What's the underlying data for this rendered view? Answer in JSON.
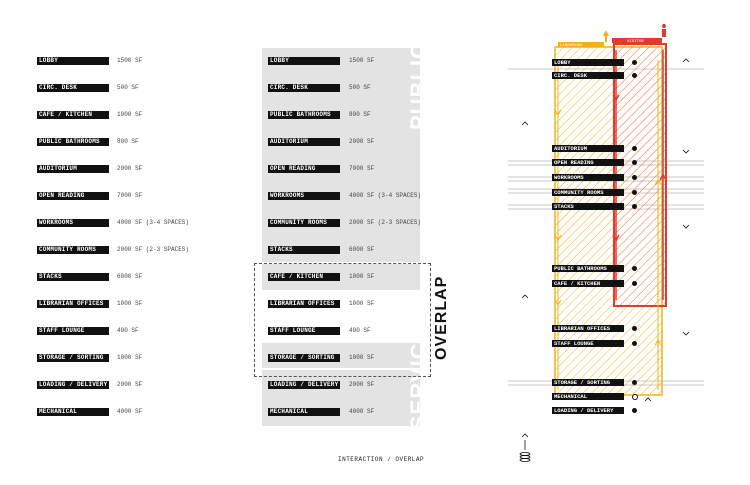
{
  "left_program": [
    {
      "name": "LOBBY",
      "area": "1500 SF"
    },
    {
      "name": "CIRC. DESK",
      "area": "500 SF"
    },
    {
      "name": "CAFE / KITCHEN",
      "area": "1000 SF"
    },
    {
      "name": "PUBLIC BATHROOMS",
      "area": "800 SF"
    },
    {
      "name": "AUDITORIUM",
      "area": "2000 SF"
    },
    {
      "name": "OPEN READING",
      "area": "7000 SF"
    },
    {
      "name": "WORKROOMS",
      "area": "4000 SF (3-4 SPACES)"
    },
    {
      "name": "COMMUNITY ROOMS",
      "area": "2000 SF (2-3 SPACES)"
    },
    {
      "name": "STACKS",
      "area": "6000 SF"
    },
    {
      "name": "LIBRARIAN OFFICES",
      "area": "1000 SF"
    },
    {
      "name": "STAFF LOUNGE",
      "area": "400 SF"
    },
    {
      "name": "STORAGE / SORTING",
      "area": "1000 SF"
    },
    {
      "name": "LOADING / DELIVERY",
      "area": "2000 SF"
    },
    {
      "name": "MECHANICAL",
      "area": "4000 SF"
    }
  ],
  "middle_program": [
    {
      "name": "LOBBY",
      "area": "1500 SF"
    },
    {
      "name": "CIRC. DESK",
      "area": "500 SF"
    },
    {
      "name": "PUBLIC BATHROOMS",
      "area": "800 SF"
    },
    {
      "name": "AUDITORIUM",
      "area": "2000 SF"
    },
    {
      "name": "OPEN READING",
      "area": "7000 SF"
    },
    {
      "name": "WORKROOMS",
      "area": "4000 SF (3-4 SPACES)"
    },
    {
      "name": "COMMUNITY ROOMS",
      "area": "2000 SF (2-3 SPACES)"
    },
    {
      "name": "STACKS",
      "area": "6000 SF"
    },
    {
      "name": "CAFE / KITCHEN",
      "area": "1000 SF"
    },
    {
      "name": "LIBRARIAN OFFICES",
      "area": "1000 SF"
    },
    {
      "name": "STAFF LOUNGE",
      "area": "400 SF"
    },
    {
      "name": "STORAGE / SORTING",
      "area": "1000 SF"
    },
    {
      "name": "LOADING / DELIVERY",
      "area": "2000 SF"
    },
    {
      "name": "MECHANICAL",
      "area": "4000 SF"
    }
  ],
  "zones": {
    "public": "PUBLIC",
    "service": "SERVICE",
    "overlap": "OVERLAP"
  },
  "caption": "INTERACTION / OVERLAP",
  "right_program": [
    {
      "name": "LOBBY"
    },
    {
      "name": "CIRC. DESK"
    },
    {
      "name": "AUDITORIUM"
    },
    {
      "name": "OPEN READING"
    },
    {
      "name": "WORKROOMS"
    },
    {
      "name": "COMMUNITY ROOMS"
    },
    {
      "name": "STACKS"
    },
    {
      "name": "PUBLIC BATHROOMS"
    },
    {
      "name": "CAFE / KITCHEN"
    },
    {
      "name": "LIBRARIAN OFFICES"
    },
    {
      "name": "STAFF LOUNGE"
    },
    {
      "name": "STORAGE / SORTING"
    },
    {
      "name": "MECHANICAL"
    },
    {
      "name": "LOADING / DELIVERY"
    }
  ],
  "flow_labels": {
    "staff": "LIBRARIAN",
    "visitor": "VISITOR"
  },
  "colors": {
    "public_flow": "#e23b2e",
    "staff_flow": "#f2b01e",
    "block_gray": "#e3e3e3"
  }
}
